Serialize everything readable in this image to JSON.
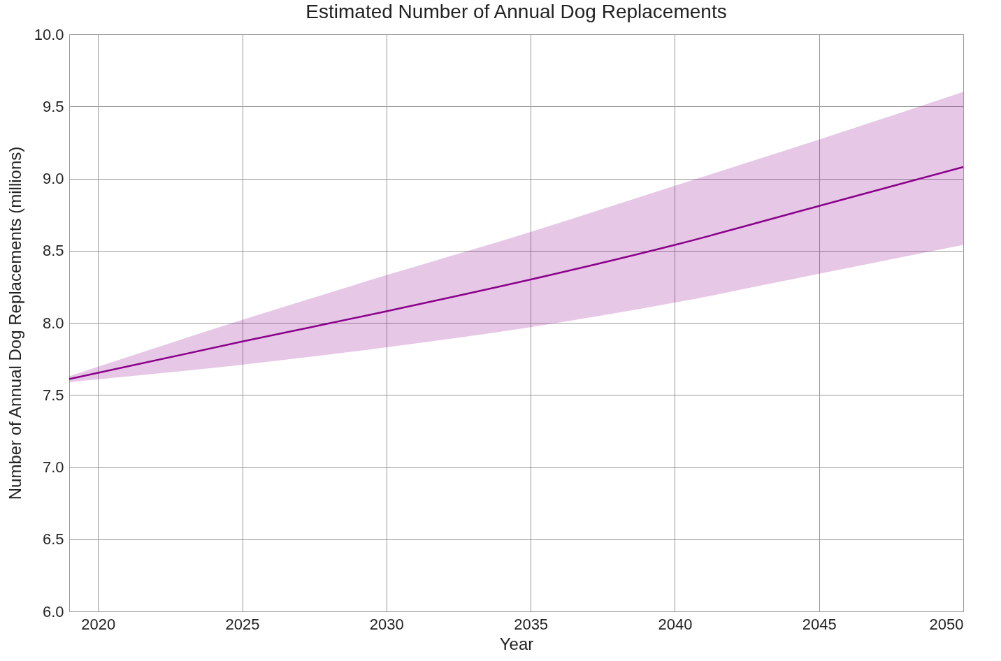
{
  "chart_data": {
    "type": "line",
    "title": "Estimated Number of Annual Dog Replacements",
    "xlabel": "Year",
    "ylabel": "Number of Annual Dog Replacements (millions)",
    "x": [
      2019,
      2025,
      2030,
      2035,
      2040,
      2045,
      2050
    ],
    "series": [
      {
        "color": "#8b008b",
        "values": [
          7.61,
          7.87,
          8.08,
          8.3,
          8.54,
          8.81,
          9.08
        ],
        "lower": [
          7.59,
          7.71,
          7.83,
          7.97,
          8.14,
          8.34,
          8.54
        ],
        "upper": [
          7.63,
          8.02,
          8.33,
          8.63,
          8.95,
          9.27,
          9.6
        ]
      }
    ],
    "xlim": [
      2019,
      2050
    ],
    "xticks": [
      2020,
      2025,
      2030,
      2035,
      2040,
      2045,
      2050
    ],
    "ylim": [
      6,
      10
    ],
    "yticks": [
      {
        "value": 6,
        "label": "6.0"
      },
      {
        "value": 6.5,
        "label": "6.5"
      },
      {
        "value": 7,
        "label": "7.0"
      },
      {
        "value": 7.5,
        "label": "7.5"
      },
      {
        "value": 8,
        "label": "8.0"
      },
      {
        "value": 8.5,
        "label": "8.5"
      },
      {
        "value": 9,
        "label": "9.0"
      },
      {
        "value": 9.5,
        "label": "9.5"
      },
      {
        "value": 10,
        "label": "10.0"
      }
    ],
    "grid": true,
    "line_style": "solid"
  }
}
